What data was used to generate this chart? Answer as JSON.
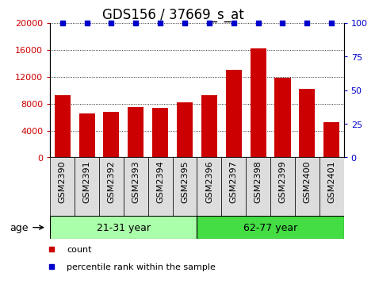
{
  "title": "GDS156 / 37669_s_at",
  "categories": [
    "GSM2390",
    "GSM2391",
    "GSM2392",
    "GSM2393",
    "GSM2394",
    "GSM2395",
    "GSM2396",
    "GSM2397",
    "GSM2398",
    "GSM2399",
    "GSM2400",
    "GSM2401"
  ],
  "bar_values": [
    9300,
    6500,
    6800,
    7500,
    7400,
    8200,
    9200,
    13000,
    16200,
    11800,
    10200,
    5200
  ],
  "percentile_values": [
    100,
    100,
    100,
    100,
    100,
    100,
    100,
    100,
    100,
    100,
    100,
    100
  ],
  "bar_color": "#cc0000",
  "percentile_color": "#0000cc",
  "ylim_left": [
    0,
    20000
  ],
  "ylim_right": [
    0,
    100
  ],
  "yticks_left": [
    0,
    4000,
    8000,
    12000,
    16000,
    20000
  ],
  "yticks_right": [
    0,
    25,
    50,
    75,
    100
  ],
  "groups": [
    {
      "label": "21-31 year",
      "start": 0,
      "end": 6,
      "color": "#aaffaa"
    },
    {
      "label": "62-77 year",
      "start": 6,
      "end": 12,
      "color": "#44dd44"
    }
  ],
  "col_bg": "#dddddd",
  "age_label": "age",
  "legend_items": [
    {
      "label": "count",
      "color": "#cc0000"
    },
    {
      "label": "percentile rank within the sample",
      "color": "#0000cc"
    }
  ],
  "title_fontsize": 12,
  "tick_fontsize": 8,
  "label_fontsize": 9,
  "group_fontsize": 9,
  "background_color": "#ffffff"
}
